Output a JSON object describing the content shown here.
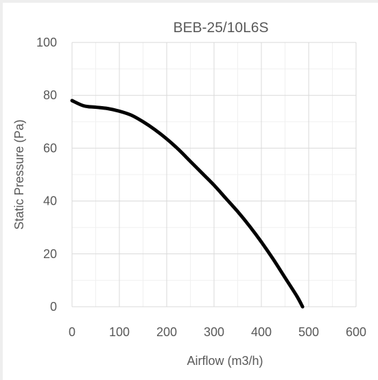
{
  "chart_data": {
    "type": "line",
    "title": "BEB-25/10L6S",
    "xlabel": "Airflow (m3/h)",
    "ylabel": "Static Pressure (Pa)",
    "xlim": [
      0,
      600
    ],
    "ylim": [
      0,
      100
    ],
    "x_ticks": [
      0,
      100,
      200,
      300,
      400,
      500,
      600
    ],
    "y_ticks": [
      0,
      20,
      40,
      60,
      80,
      100
    ],
    "x_tick_labels": [
      "0",
      "100",
      "200",
      "300",
      "400",
      "500",
      "600"
    ],
    "y_tick_labels": [
      "0",
      "20",
      "40",
      "60",
      "80",
      "100"
    ],
    "grid": true,
    "series": [
      {
        "name": "",
        "color": "#000000",
        "x": [
          0,
          25,
          50,
          75,
          100,
          125,
          150,
          175,
          200,
          225,
          250,
          275,
          300,
          325,
          350,
          375,
          400,
          425,
          450,
          475,
          487
        ],
        "y": [
          78,
          76,
          75.5,
          75,
          74,
          72.5,
          70,
          67,
          63.5,
          59.5,
          55,
          50.5,
          46,
          41,
          36,
          30.5,
          24.5,
          18,
          11,
          4,
          0
        ]
      }
    ]
  }
}
